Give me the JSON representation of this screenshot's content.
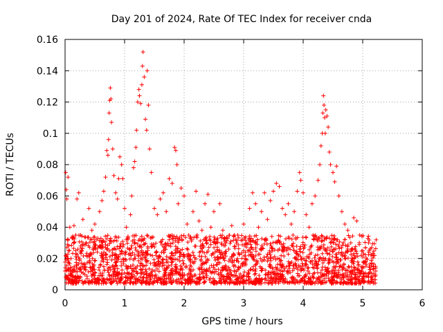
{
  "chart_data": {
    "type": "scatter",
    "title": "Day 201 of 2024, Rate Of TEC Index for receiver cnda",
    "xlabel": "GPS time / hours",
    "ylabel": "ROTI / TECUs",
    "xlim": [
      0,
      6
    ],
    "ylim": [
      0,
      0.16
    ],
    "x_ticks": [
      0,
      1,
      2,
      3,
      4,
      5,
      6
    ],
    "x_tick_labels": [
      "0",
      "1",
      "2",
      "3",
      "4",
      "5",
      "6"
    ],
    "y_ticks": [
      0,
      0.02,
      0.04,
      0.06,
      0.08,
      0.1,
      0.12,
      0.14,
      0.16
    ],
    "y_tick_labels": [
      "0",
      "0.02",
      "0.04",
      "0.06",
      "0.08",
      "0.1",
      "0.12",
      "0.14",
      "0.16"
    ],
    "grid": true,
    "marker": "+",
    "marker_color": "#ff0000",
    "series": [
      {
        "name": "ROTI",
        "points": [
          [
            0.0,
            0.012
          ],
          [
            0.01,
            0.075
          ],
          [
            0.02,
            0.064
          ],
          [
            0.03,
            0.058
          ],
          [
            0.05,
            0.072
          ],
          [
            0.06,
            0.028
          ],
          [
            0.08,
            0.04
          ],
          [
            0.1,
            0.02
          ],
          [
            0.12,
            0.033
          ],
          [
            0.15,
            0.041
          ],
          [
            0.18,
            0.025
          ],
          [
            0.2,
            0.058
          ],
          [
            0.23,
            0.062
          ],
          [
            0.26,
            0.035
          ],
          [
            0.3,
            0.045
          ],
          [
            0.35,
            0.03
          ],
          [
            0.4,
            0.052
          ],
          [
            0.45,
            0.038
          ],
          [
            0.5,
            0.042
          ],
          [
            0.55,
            0.033
          ],
          [
            0.58,
            0.05
          ],
          [
            0.62,
            0.057
          ],
          [
            0.65,
            0.063
          ],
          [
            0.68,
            0.072
          ],
          [
            0.7,
            0.089
          ],
          [
            0.72,
            0.086
          ],
          [
            0.73,
            0.096
          ],
          [
            0.74,
            0.113
          ],
          [
            0.75,
            0.121
          ],
          [
            0.76,
            0.129
          ],
          [
            0.77,
            0.122
          ],
          [
            0.78,
            0.107
          ],
          [
            0.8,
            0.09
          ],
          [
            0.82,
            0.073
          ],
          [
            0.85,
            0.062
          ],
          [
            0.88,
            0.058
          ],
          [
            0.9,
            0.071
          ],
          [
            0.92,
            0.085
          ],
          [
            0.95,
            0.08
          ],
          [
            0.97,
            0.071
          ],
          [
            1.0,
            0.052
          ],
          [
            1.03,
            0.04
          ],
          [
            1.05,
            0.033
          ],
          [
            1.08,
            0.026
          ],
          [
            1.1,
            0.048
          ],
          [
            1.12,
            0.06
          ],
          [
            1.15,
            0.078
          ],
          [
            1.17,
            0.082
          ],
          [
            1.19,
            0.091
          ],
          [
            1.2,
            0.102
          ],
          [
            1.22,
            0.12
          ],
          [
            1.24,
            0.128
          ],
          [
            1.25,
            0.124
          ],
          [
            1.27,
            0.119
          ],
          [
            1.29,
            0.131
          ],
          [
            1.3,
            0.143
          ],
          [
            1.31,
            0.152
          ],
          [
            1.33,
            0.136
          ],
          [
            1.35,
            0.109
          ],
          [
            1.37,
            0.102
          ],
          [
            1.38,
            0.14
          ],
          [
            1.4,
            0.118
          ],
          [
            1.42,
            0.09
          ],
          [
            1.45,
            0.075
          ],
          [
            1.5,
            0.052
          ],
          [
            1.55,
            0.048
          ],
          [
            1.6,
            0.058
          ],
          [
            1.65,
            0.062
          ],
          [
            1.7,
            0.05
          ],
          [
            1.75,
            0.071
          ],
          [
            1.8,
            0.068
          ],
          [
            1.84,
            0.091
          ],
          [
            1.86,
            0.089
          ],
          [
            1.88,
            0.08
          ],
          [
            1.9,
            0.055
          ],
          [
            1.95,
            0.065
          ],
          [
            2.0,
            0.06
          ],
          [
            2.05,
            0.042
          ],
          [
            2.1,
            0.033
          ],
          [
            2.15,
            0.05
          ],
          [
            2.2,
            0.063
          ],
          [
            2.25,
            0.044
          ],
          [
            2.3,
            0.038
          ],
          [
            2.35,
            0.055
          ],
          [
            2.4,
            0.061
          ],
          [
            2.45,
            0.04
          ],
          [
            2.5,
            0.05
          ],
          [
            2.55,
            0.032
          ],
          [
            2.6,
            0.055
          ],
          [
            2.65,
            0.038
          ],
          [
            2.7,
            0.03
          ],
          [
            2.8,
            0.041
          ],
          [
            2.9,
            0.035
          ],
          [
            3.0,
            0.042
          ],
          [
            3.05,
            0.03
          ],
          [
            3.1,
            0.052
          ],
          [
            3.15,
            0.062
          ],
          [
            3.2,
            0.055
          ],
          [
            3.25,
            0.04
          ],
          [
            3.3,
            0.05
          ],
          [
            3.35,
            0.062
          ],
          [
            3.4,
            0.045
          ],
          [
            3.45,
            0.057
          ],
          [
            3.5,
            0.063
          ],
          [
            3.55,
            0.068
          ],
          [
            3.6,
            0.066
          ],
          [
            3.65,
            0.052
          ],
          [
            3.7,
            0.048
          ],
          [
            3.75,
            0.055
          ],
          [
            3.8,
            0.042
          ],
          [
            3.85,
            0.05
          ],
          [
            3.9,
            0.063
          ],
          [
            3.94,
            0.075
          ],
          [
            3.96,
            0.07
          ],
          [
            4.0,
            0.062
          ],
          [
            4.05,
            0.048
          ],
          [
            4.1,
            0.04
          ],
          [
            4.15,
            0.055
          ],
          [
            4.2,
            0.06
          ],
          [
            4.25,
            0.07
          ],
          [
            4.28,
            0.08
          ],
          [
            4.3,
            0.092
          ],
          [
            4.32,
            0.1
          ],
          [
            4.33,
            0.113
          ],
          [
            4.34,
            0.124
          ],
          [
            4.35,
            0.118
          ],
          [
            4.36,
            0.11
          ],
          [
            4.37,
            0.1
          ],
          [
            4.38,
            0.115
          ],
          [
            4.4,
            0.111
          ],
          [
            4.42,
            0.104
          ],
          [
            4.44,
            0.088
          ],
          [
            4.46,
            0.08
          ],
          [
            4.5,
            0.075
          ],
          [
            4.53,
            0.069
          ],
          [
            4.56,
            0.079
          ],
          [
            4.6,
            0.06
          ],
          [
            4.65,
            0.05
          ],
          [
            4.7,
            0.042
          ],
          [
            4.75,
            0.038
          ],
          [
            4.8,
            0.03
          ],
          [
            4.85,
            0.046
          ],
          [
            4.9,
            0.044
          ],
          [
            4.95,
            0.035
          ],
          [
            5.0,
            0.025
          ],
          [
            5.05,
            0.018
          ],
          [
            5.1,
            0.03
          ],
          [
            5.15,
            0.027
          ],
          [
            5.2,
            0.022
          ],
          [
            5.22,
            0.012
          ]
        ],
        "dense_band": {
          "description": "continuous cluster of points",
          "x_start": 0.0,
          "x_end": 5.23,
          "y_low": 0.004,
          "y_high": 0.035
        }
      }
    ]
  }
}
